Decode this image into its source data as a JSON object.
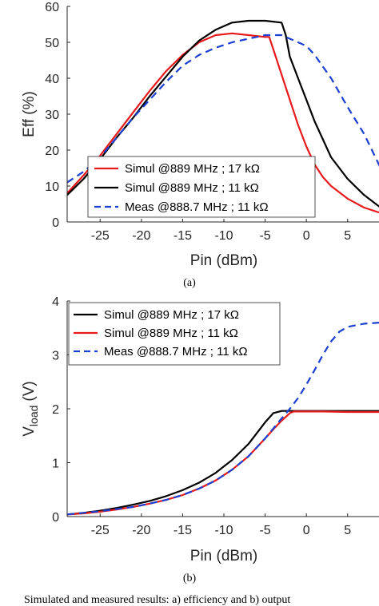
{
  "chart_data": [
    {
      "type": "line",
      "title": "",
      "xlabel": "Pin (dBm)",
      "ylabel": "Eff (%)",
      "xlim": [
        -29,
        9
      ],
      "ylim": [
        0,
        60
      ],
      "xticks": [
        -25,
        -20,
        -15,
        -10,
        -5,
        0,
        5
      ],
      "yticks": [
        0,
        10,
        20,
        30,
        40,
        50,
        60
      ],
      "grid": false,
      "legend_position": "bottom-left",
      "caption": "(a)",
      "series": [
        {
          "name": "Simul @889 MHz ; 17 kΩ",
          "color": "#e8191a",
          "dash": "solid",
          "x": [
            -29,
            -27,
            -25,
            -23,
            -21,
            -19,
            -17,
            -15,
            -13,
            -11,
            -9,
            -7,
            -5,
            -4.5,
            -4,
            -3,
            -2,
            -1,
            0,
            1,
            2,
            3,
            5,
            7,
            9
          ],
          "y": [
            8,
            13,
            18.5,
            24.5,
            30.5,
            36.5,
            42,
            46.5,
            50,
            52,
            52.5,
            52,
            51.5,
            51.5,
            48,
            41,
            34,
            27,
            21,
            16,
            12.5,
            10,
            6.5,
            4,
            2.5
          ]
        },
        {
          "name": "Simul @889 MHz ; 11 kΩ",
          "color": "#000000",
          "dash": "solid",
          "x": [
            -29,
            -27,
            -25,
            -23,
            -21,
            -19,
            -17,
            -15,
            -13,
            -11,
            -9,
            -7,
            -5,
            -3,
            -2.5,
            -2,
            -1,
            0,
            1,
            2,
            3,
            5,
            7,
            9
          ],
          "y": [
            7.5,
            12,
            17.5,
            23.5,
            29,
            35,
            40.5,
            46,
            50.5,
            53.5,
            55.5,
            56,
            56,
            55.5,
            52,
            46,
            40,
            34,
            28,
            23,
            18,
            12,
            7.5,
            4
          ]
        },
        {
          "name": "Meas @888.7 MHz ; 11 kΩ",
          "color": "#1a3fd1",
          "dash": "dashed",
          "x": [
            -29,
            -27,
            -25,
            -23,
            -21,
            -19,
            -17,
            -15,
            -13,
            -11,
            -9,
            -7,
            -5,
            -3,
            -1,
            0,
            1,
            3,
            5,
            7,
            9
          ],
          "y": [
            11,
            14,
            18,
            23.5,
            29,
            34,
            39,
            43.5,
            46.5,
            48.5,
            50,
            51,
            52,
            52,
            50,
            49,
            46.5,
            40,
            32,
            24.5,
            15
          ]
        }
      ]
    },
    {
      "type": "line",
      "title": "",
      "xlabel": "Pin (dBm)",
      "ylabel_main": "V",
      "ylabel_sub": "load",
      "ylabel_unit": "(V)",
      "xlim": [
        -29,
        9
      ],
      "ylim": [
        0,
        4
      ],
      "xticks": [
        -25,
        -20,
        -15,
        -10,
        -5,
        0,
        5
      ],
      "yticks": [
        0,
        1,
        2,
        3,
        4
      ],
      "grid": false,
      "legend_position": "top-left",
      "caption": "(b)",
      "series": [
        {
          "name": "Simul @889 MHz ; 17 kΩ",
          "color": "#000000",
          "dash": "solid",
          "x": [
            -29,
            -27,
            -25,
            -23,
            -21,
            -19,
            -17,
            -15,
            -13,
            -11,
            -9,
            -7,
            -5,
            -4,
            -3,
            -2,
            0,
            2,
            5,
            9
          ],
          "y": [
            0.04,
            0.07,
            0.11,
            0.16,
            0.22,
            0.29,
            0.38,
            0.49,
            0.63,
            0.81,
            1.05,
            1.35,
            1.75,
            1.92,
            1.96,
            1.96,
            1.96,
            1.96,
            1.96,
            1.96
          ]
        },
        {
          "name": "Simul @889 MHz ; 11 kΩ",
          "color": "#e8191a",
          "dash": "solid",
          "x": [
            -29,
            -27,
            -25,
            -23,
            -21,
            -19,
            -17,
            -15,
            -13,
            -11,
            -9,
            -7,
            -5,
            -4,
            -3,
            -2,
            -1.5,
            0,
            2,
            5,
            9
          ],
          "y": [
            0.04,
            0.06,
            0.09,
            0.13,
            0.18,
            0.24,
            0.31,
            0.4,
            0.52,
            0.67,
            0.87,
            1.12,
            1.45,
            1.62,
            1.78,
            1.92,
            1.95,
            1.95,
            1.95,
            1.94,
            1.94
          ]
        },
        {
          "name": "Meas @888.7 MHz ; 11 kΩ",
          "color": "#1a3fd1",
          "dash": "dashed",
          "x": [
            -29,
            -27,
            -25,
            -23,
            -21,
            -19,
            -17,
            -15,
            -13,
            -11,
            -9,
            -7,
            -5,
            -3,
            -2,
            -1,
            0,
            1,
            2,
            3,
            4,
            5,
            7,
            9
          ],
          "y": [
            0.04,
            0.07,
            0.1,
            0.14,
            0.18,
            0.24,
            0.31,
            0.4,
            0.52,
            0.67,
            0.87,
            1.12,
            1.45,
            1.82,
            2.0,
            2.2,
            2.45,
            2.72,
            3.0,
            3.25,
            3.43,
            3.52,
            3.58,
            3.6
          ]
        }
      ]
    }
  ],
  "footer_text": "Simulated and measured results: a) efficiency and b) output"
}
